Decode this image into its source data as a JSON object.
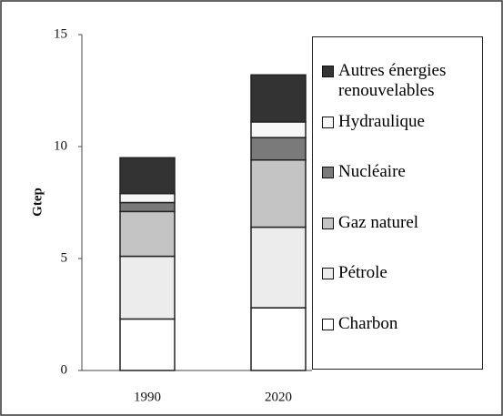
{
  "chart_data": {
    "type": "stacked_bar",
    "y_label": "Gtep",
    "categories": [
      "1990",
      "2020"
    ],
    "series": [
      {
        "name": "Charbon",
        "color": "#ffffff",
        "values": [
          2.3,
          2.8
        ]
      },
      {
        "name": "Pétrole",
        "color": "#ececec",
        "values": [
          2.8,
          3.6
        ]
      },
      {
        "name": "Gaz naturel",
        "color": "#c4c4c4",
        "values": [
          2.0,
          3.0
        ]
      },
      {
        "name": "Nucléaire",
        "color": "#7a7a7a",
        "values": [
          0.4,
          1.0
        ]
      },
      {
        "name": "Hydraulique",
        "color": "#f7f7f7",
        "values": [
          0.4,
          0.7
        ]
      },
      {
        "name": "Autres énergies renouvelables",
        "color": "#333333",
        "values": [
          1.6,
          2.1
        ]
      }
    ],
    "ylim": [
      0,
      15
    ],
    "yticks": [
      0,
      5,
      10,
      15
    ],
    "grid": false,
    "legend": "right"
  }
}
